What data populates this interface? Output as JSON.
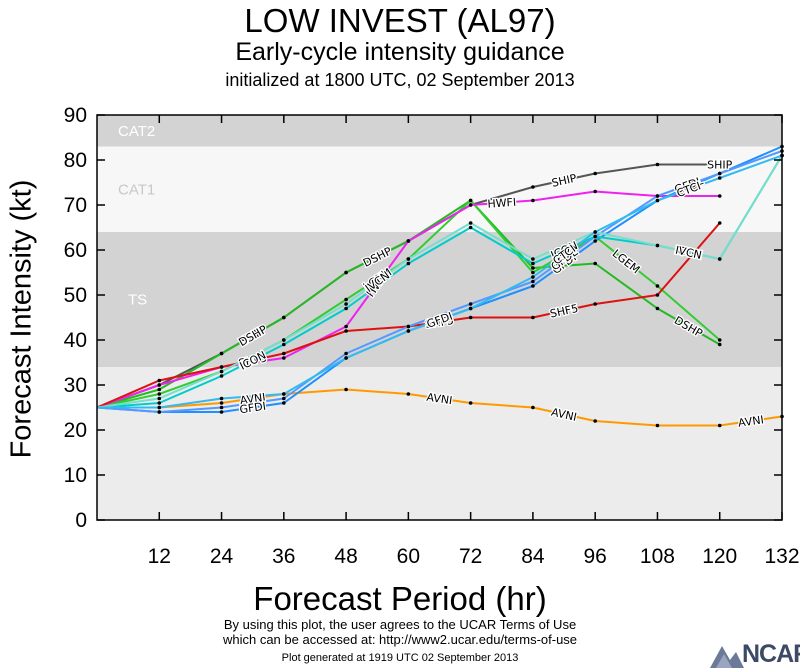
{
  "header": {
    "title": "LOW INVEST (AL97)",
    "subtitle": "Early-cycle intensity guidance",
    "init": "initialized at 1800 UTC, 02 September 2013"
  },
  "footer": {
    "line1": "By using this plot, the user agrees to the UCAR Terms of Use",
    "line2": "which can be accessed at: http://www2.ucar.edu/terms-of-use",
    "generated": "Plot generated at 1919 UTC   02 September 2013",
    "logo": "NCAR"
  },
  "chart_data": {
    "type": "line",
    "title": "LOW INVEST (AL97)",
    "xlabel": "Forecast Period (hr)",
    "ylabel": "Forecast Intensity (kt)",
    "xlim": [
      0,
      132
    ],
    "ylim": [
      0,
      90
    ],
    "xticks": [
      12,
      24,
      36,
      48,
      60,
      72,
      84,
      96,
      108,
      120,
      132
    ],
    "yticks": [
      0,
      10,
      20,
      30,
      40,
      50,
      60,
      70,
      80,
      90
    ],
    "bands": [
      {
        "label": "TS",
        "from": 34,
        "to": 64,
        "color": "#d3d3d3"
      },
      {
        "label": "CAT1",
        "from": 64,
        "to": 83,
        "color": "#f7f7f7"
      },
      {
        "label": "CAT2",
        "from": 83,
        "to": 90,
        "color": "#d3d3d3"
      }
    ],
    "plot_background": "#ececec",
    "series": [
      {
        "name": "SHIP",
        "color": "#555555",
        "x": [
          0,
          12,
          24,
          36,
          48,
          60,
          72,
          84,
          96,
          108,
          120
        ],
        "y": [
          25,
          30,
          37,
          45,
          55,
          62,
          70,
          74,
          77,
          79,
          79
        ],
        "labels": [
          [
            24,
            "SHIP"
          ],
          [
            84,
            "SHIP"
          ],
          [
            120,
            "SHIP"
          ]
        ]
      },
      {
        "name": "DSHP",
        "color": "#22bb22",
        "x": [
          0,
          12,
          24,
          36,
          48,
          60,
          72,
          84,
          96,
          108,
          120
        ],
        "y": [
          25,
          29,
          37,
          45,
          55,
          62,
          71,
          56,
          57,
          47,
          39
        ],
        "labels": [
          [
            24,
            "DSHP"
          ],
          [
            48,
            "DSHP"
          ],
          [
            108,
            "DSHP"
          ]
        ]
      },
      {
        "name": "LGEM",
        "color": "#33cc33",
        "x": [
          0,
          12,
          24,
          36,
          48,
          60,
          72,
          84,
          96,
          108,
          120
        ],
        "y": [
          25,
          28,
          33,
          40,
          49,
          58,
          71,
          55,
          63,
          52,
          40
        ],
        "labels": [
          [
            48,
            "LGEM"
          ],
          [
            96,
            "LGEM"
          ]
        ]
      },
      {
        "name": "HWFI",
        "color": "#ee22ee",
        "x": [
          0,
          12,
          24,
          36,
          48,
          60,
          72,
          84,
          96,
          108,
          120
        ],
        "y": [
          25,
          30,
          34,
          36,
          43,
          62,
          70,
          71,
          73,
          72,
          72
        ],
        "labels": [
          [
            72,
            "HWFI"
          ],
          [
            48,
            "HWFI"
          ]
        ]
      },
      {
        "name": "SHF5",
        "color": "#dd1111",
        "x": [
          0,
          12,
          24,
          36,
          48,
          60,
          72,
          84,
          96,
          108,
          120
        ],
        "y": [
          25,
          31,
          34,
          37,
          42,
          43,
          45,
          45,
          48,
          50,
          66
        ],
        "labels": [
          [
            24,
            "SHF5"
          ],
          [
            60,
            "SHF5"
          ],
          [
            84,
            "SHF5"
          ]
        ]
      },
      {
        "name": "AVNI",
        "color": "#ff9900",
        "x": [
          0,
          12,
          24,
          36,
          48,
          60,
          72,
          84,
          96,
          108,
          120,
          132
        ],
        "y": [
          25,
          25,
          26,
          28,
          29,
          28,
          26,
          25,
          22,
          21,
          21,
          23
        ],
        "labels": [
          [
            24,
            "AVNI"
          ],
          [
            60,
            "AVNI"
          ],
          [
            84,
            "AVNI"
          ],
          [
            120,
            "AVNI"
          ]
        ]
      },
      {
        "name": "GFDI",
        "color": "#1e90ff",
        "x": [
          0,
          12,
          24,
          36,
          48,
          60,
          72,
          84,
          96,
          108,
          120,
          132
        ],
        "y": [
          25,
          24,
          24,
          26,
          36,
          42,
          47,
          52,
          62,
          71,
          77,
          83
        ],
        "labels": [
          [
            24,
            "GFDI"
          ],
          [
            60,
            "GFDI"
          ],
          [
            84,
            "GFDI"
          ],
          [
            108,
            "GFDI"
          ]
        ]
      },
      {
        "name": "GFDL",
        "color": "#5599ff",
        "x": [
          0,
          12,
          24,
          36,
          48,
          60,
          72,
          84,
          96,
          108,
          120,
          132
        ],
        "y": [
          25,
          24,
          25,
          27,
          37,
          43,
          48,
          53,
          63,
          72,
          77,
          82
        ],
        "labels": [
          [
            108,
            "GFDL"
          ],
          [
            84,
            "GFDL"
          ]
        ]
      },
      {
        "name": "ICON",
        "color": "#00cccc",
        "x": [
          0,
          12,
          24,
          36,
          48,
          60,
          72,
          84,
          96,
          108,
          120,
          132
        ],
        "y": [
          25,
          26,
          32,
          39,
          47,
          57,
          65,
          57,
          63,
          61,
          58,
          81
        ],
        "labels": [
          [
            24,
            "ICON"
          ],
          [
            84,
            "ICON"
          ],
          [
            108,
            "ICON"
          ]
        ]
      },
      {
        "name": "IVCN",
        "color": "#77ddcc",
        "x": [
          0,
          12,
          24,
          36,
          48,
          60,
          72,
          84,
          96,
          108,
          120,
          132
        ],
        "y": [
          25,
          27,
          33,
          40,
          48,
          58,
          66,
          58,
          64,
          61,
          58,
          81
        ],
        "labels": [
          [
            108,
            "IVCN"
          ],
          [
            48,
            "IVCN"
          ]
        ]
      },
      {
        "name": "CTCI",
        "color": "#33bbee",
        "x": [
          0,
          12,
          24,
          36,
          48,
          60,
          72,
          84,
          96,
          108,
          120,
          132
        ],
        "y": [
          25,
          25,
          27,
          28,
          36,
          42,
          47,
          54,
          64,
          71,
          76,
          81
        ],
        "labels": [
          [
            84,
            "CTCI"
          ],
          [
            108,
            "CTCI"
          ]
        ]
      }
    ]
  }
}
